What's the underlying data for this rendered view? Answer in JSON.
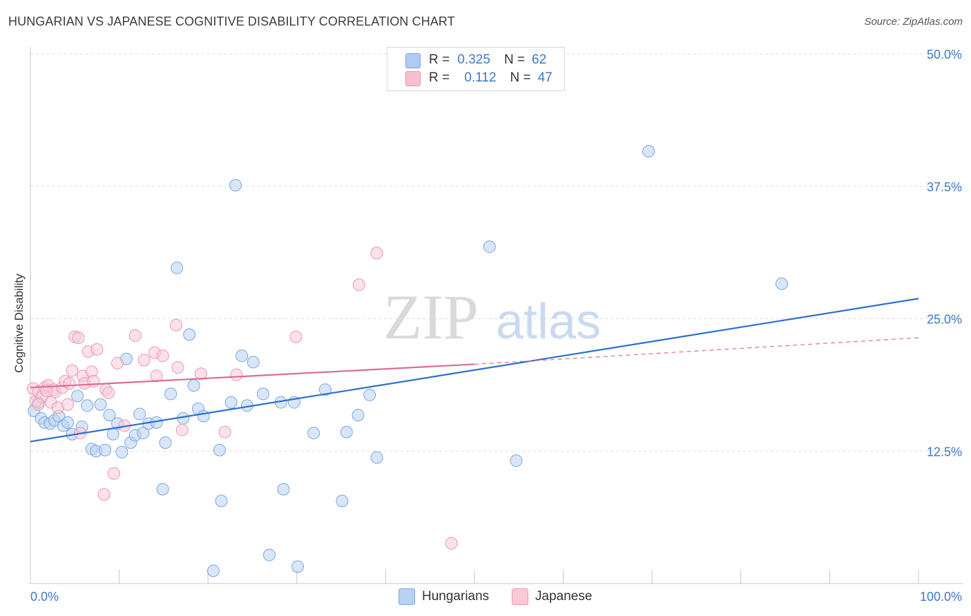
{
  "title": "HUNGARIAN VS JAPANESE COGNITIVE DISABILITY CORRELATION CHART",
  "source": "Source: ZipAtlas.com",
  "watermark": {
    "zip": "ZIP",
    "atlas": "atlas"
  },
  "legend_stats": [
    {
      "r_label": "R =",
      "r_value": "0.325",
      "n_label": "N =",
      "n_value": "62",
      "color": "#aecbf0",
      "border": "#7aa6e0"
    },
    {
      "r_label": "R =",
      "r_value": "0.112",
      "n_label": "N =",
      "n_value": "47",
      "color": "#f7bfd0",
      "border": "#e896b0"
    }
  ],
  "bottom_legend": [
    {
      "label": "Hungarians",
      "color": "#b8d2f3",
      "border": "#7aa6e0"
    },
    {
      "label": "Japanese",
      "color": "#f9cad8",
      "border": "#e896b0"
    }
  ],
  "chart_data": {
    "type": "scatter",
    "title": "HUNGARIAN VS JAPANESE COGNITIVE DISABILITY CORRELATION CHART",
    "xlabel": "",
    "ylabel": "Cognitive Disability",
    "xlim": [
      0,
      100
    ],
    "ylim": [
      0,
      50
    ],
    "x_tick_labels": [
      "0.0%",
      "100.0%"
    ],
    "y_ticks": [
      12.5,
      25.0,
      37.5,
      50.0
    ],
    "y_tick_labels": [
      "12.5%",
      "25.0%",
      "37.5%",
      "50.0%"
    ],
    "grid": "horizontal dashed",
    "legend": "top-center",
    "series": [
      {
        "name": "Hungarians",
        "color": "#7aa6e0",
        "fill": "#b8d2f3",
        "trend": {
          "x": [
            0,
            100
          ],
          "y": [
            13.4,
            26.9
          ],
          "style": "solid",
          "color": "#2a6fd1"
        },
        "points": [
          [
            0.4,
            16.3
          ],
          [
            0.9,
            17.1
          ],
          [
            1.2,
            15.6
          ],
          [
            1.6,
            15.2
          ],
          [
            2.2,
            15.1
          ],
          [
            2.7,
            15.4
          ],
          [
            3.2,
            15.8
          ],
          [
            3.7,
            14.9
          ],
          [
            4.2,
            15.2
          ],
          [
            4.7,
            14.1
          ],
          [
            5.3,
            17.7
          ],
          [
            5.8,
            14.8
          ],
          [
            6.4,
            16.8
          ],
          [
            6.9,
            12.7
          ],
          [
            7.4,
            12.5
          ],
          [
            7.9,
            16.9
          ],
          [
            8.4,
            12.6
          ],
          [
            8.9,
            15.9
          ],
          [
            9.3,
            14.1
          ],
          [
            9.8,
            15.1
          ],
          [
            10.3,
            12.4
          ],
          [
            10.8,
            21.2
          ],
          [
            11.3,
            13.3
          ],
          [
            11.8,
            14.0
          ],
          [
            12.3,
            16.0
          ],
          [
            12.7,
            14.2
          ],
          [
            13.3,
            15.1
          ],
          [
            14.2,
            15.2
          ],
          [
            14.9,
            8.9
          ],
          [
            15.2,
            13.3
          ],
          [
            15.8,
            17.9
          ],
          [
            16.5,
            29.8
          ],
          [
            17.2,
            15.6
          ],
          [
            17.9,
            23.5
          ],
          [
            18.4,
            18.7
          ],
          [
            18.9,
            16.5
          ],
          [
            19.5,
            15.8
          ],
          [
            20.6,
            1.2
          ],
          [
            21.3,
            12.6
          ],
          [
            21.5,
            7.8
          ],
          [
            22.6,
            17.1
          ],
          [
            23.1,
            37.6
          ],
          [
            23.8,
            21.5
          ],
          [
            24.4,
            16.8
          ],
          [
            25.1,
            20.9
          ],
          [
            26.2,
            17.9
          ],
          [
            26.9,
            2.7
          ],
          [
            28.2,
            17.1
          ],
          [
            28.5,
            8.9
          ],
          [
            29.7,
            17.1
          ],
          [
            30.1,
            1.6
          ],
          [
            31.9,
            14.2
          ],
          [
            33.2,
            18.3
          ],
          [
            35.1,
            7.8
          ],
          [
            35.6,
            14.3
          ],
          [
            36.9,
            15.9
          ],
          [
            38.2,
            17.8
          ],
          [
            39.0,
            11.9
          ],
          [
            51.7,
            31.8
          ],
          [
            54.7,
            11.6
          ],
          [
            69.6,
            40.8
          ],
          [
            84.6,
            28.3
          ]
        ]
      },
      {
        "name": "Japanese",
        "color": "#e896b0",
        "fill": "#f9cad8",
        "trend": {
          "x": [
            0,
            50
          ],
          "y": [
            18.5,
            20.7
          ],
          "style": "solid",
          "color": "#e06a93",
          "extension": {
            "x": [
              50,
              100
            ],
            "y": [
              20.7,
              23.2
            ],
            "style": "dashed"
          }
        },
        "points": [
          [
            0.3,
            18.4
          ],
          [
            0.6,
            17.2
          ],
          [
            0.9,
            18.1
          ],
          [
            1.3,
            17.6
          ],
          [
            1.6,
            18.5
          ],
          [
            2.0,
            18.7
          ],
          [
            2.3,
            17.1
          ],
          [
            2.6,
            18.3
          ],
          [
            2.8,
            18.1
          ],
          [
            3.1,
            16.6
          ],
          [
            3.6,
            18.5
          ],
          [
            3.9,
            19.1
          ],
          [
            4.2,
            16.9
          ],
          [
            4.4,
            18.9
          ],
          [
            4.7,
            20.1
          ],
          [
            5.0,
            23.3
          ],
          [
            5.4,
            23.2
          ],
          [
            5.6,
            14.2
          ],
          [
            5.9,
            19.6
          ],
          [
            6.1,
            18.9
          ],
          [
            6.5,
            21.9
          ],
          [
            6.9,
            20.0
          ],
          [
            7.1,
            19.1
          ],
          [
            7.5,
            22.1
          ],
          [
            8.3,
            8.4
          ],
          [
            8.5,
            18.3
          ],
          [
            8.8,
            18.0
          ],
          [
            9.4,
            10.4
          ],
          [
            9.8,
            20.8
          ],
          [
            10.6,
            14.9
          ],
          [
            11.8,
            23.4
          ],
          [
            12.8,
            21.1
          ],
          [
            14.0,
            21.8
          ],
          [
            14.2,
            19.6
          ],
          [
            14.9,
            21.5
          ],
          [
            16.4,
            24.4
          ],
          [
            16.6,
            20.4
          ],
          [
            17.1,
            14.5
          ],
          [
            19.2,
            19.8
          ],
          [
            21.9,
            14.3
          ],
          [
            23.2,
            19.7
          ],
          [
            29.9,
            23.3
          ],
          [
            37.0,
            28.2
          ],
          [
            39.0,
            31.2
          ],
          [
            47.4,
            3.8
          ],
          [
            0.9,
            16.9
          ],
          [
            1.8,
            18.2
          ]
        ]
      }
    ]
  }
}
